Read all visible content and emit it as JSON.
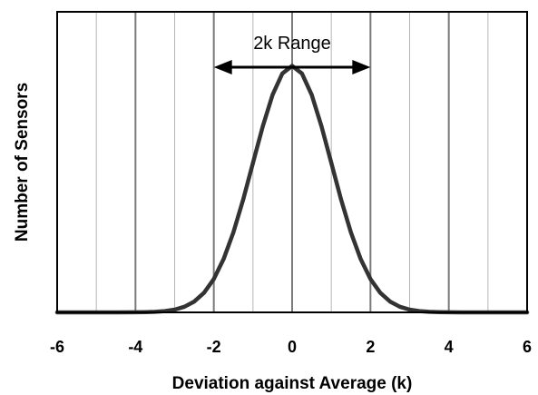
{
  "chart_data": {
    "type": "line",
    "title": "",
    "xlabel": "Deviation against Average (k)",
    "ylabel": "Number of Sensors",
    "xlim": [
      -6,
      6
    ],
    "ylim": [
      0,
      1.5
    ],
    "xticks": [
      -6,
      -4,
      -2,
      0,
      2,
      4,
      6
    ],
    "xtick_labels": [
      "-6",
      "-4",
      "-2",
      "0",
      "2",
      "4",
      "6"
    ],
    "grid": {
      "vertical_major": [
        -4,
        -2,
        0,
        2,
        4
      ],
      "vertical_minor": [
        -5,
        -3,
        -1,
        1,
        3,
        5
      ],
      "horizontal": false
    },
    "legend": "none",
    "series": [
      {
        "color": "#333333",
        "x": [
          -6,
          -5.5,
          -5,
          -4.5,
          -4,
          -3.75,
          -3.5,
          -3.25,
          -3,
          -2.75,
          -2.5,
          -2.25,
          -2,
          -1.75,
          -1.5,
          -1.25,
          -1,
          -0.75,
          -0.5,
          -0.25,
          0,
          0.25,
          0.5,
          0.75,
          1,
          1.25,
          1.5,
          1.75,
          2,
          2.25,
          2.5,
          2.75,
          3,
          3.25,
          3.5,
          3.75,
          4,
          4.5,
          5,
          5.5,
          6
        ],
        "y": [
          0.0,
          0.0,
          0.0,
          0.0,
          0.0001,
          0.0004,
          0.0009,
          0.002,
          0.0044,
          0.0091,
          0.0175,
          0.0317,
          0.054,
          0.0863,
          0.1295,
          0.1826,
          0.242,
          0.3011,
          0.3521,
          0.3867,
          0.399,
          0.3867,
          0.3521,
          0.3011,
          0.242,
          0.1826,
          0.1295,
          0.0863,
          0.054,
          0.0317,
          0.0175,
          0.0091,
          0.0044,
          0.002,
          0.0009,
          0.0004,
          0.0001,
          0.0,
          0.0,
          0.0,
          0.0
        ]
      }
    ],
    "annotation": {
      "text": "2k Range",
      "arrow_from": -2,
      "arrow_to": 2
    }
  }
}
